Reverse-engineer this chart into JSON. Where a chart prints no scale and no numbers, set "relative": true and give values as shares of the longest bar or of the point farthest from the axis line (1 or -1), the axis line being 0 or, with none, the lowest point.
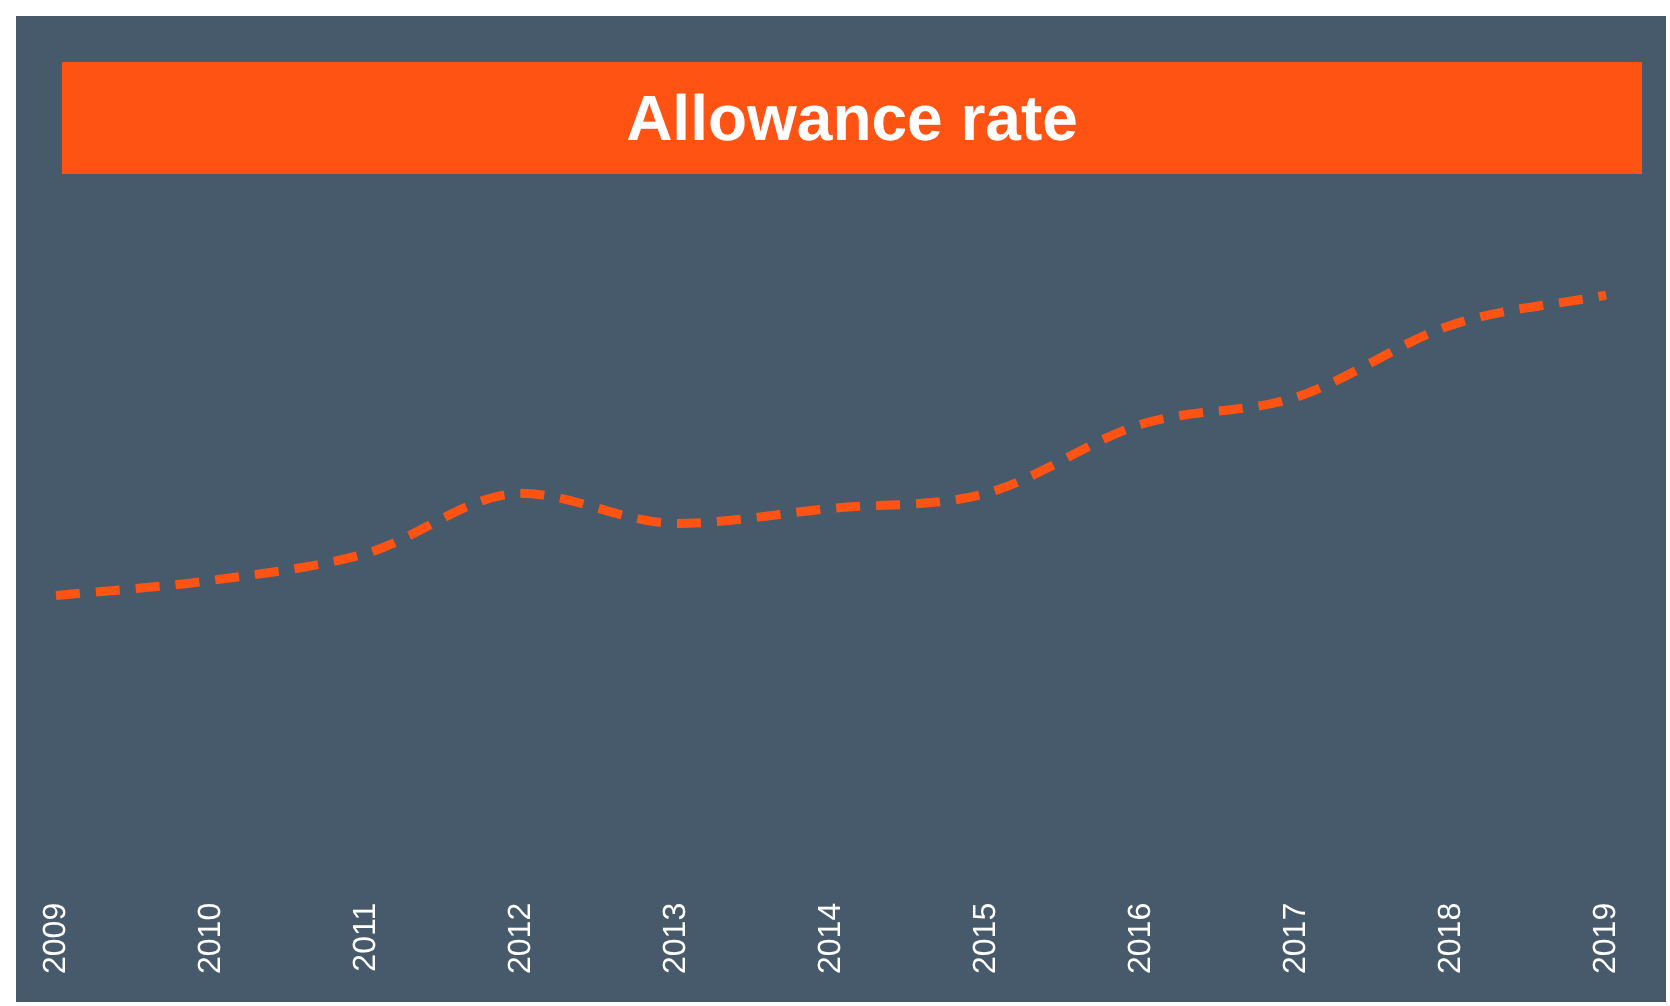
{
  "chart_data": {
    "type": "line",
    "title": "Allowance rate",
    "categories": [
      "2009",
      "2010",
      "2011",
      "2012",
      "2013",
      "2014",
      "2015",
      "2016",
      "2017",
      "2018",
      "2019"
    ],
    "values": [
      0,
      0.05,
      0.14,
      0.34,
      0.24,
      0.29,
      0.34,
      0.57,
      0.66,
      0.9,
      1
    ],
    "color": "#ff5314",
    "relative": true,
    "line_style": "dashed",
    "marker": "none"
  }
}
